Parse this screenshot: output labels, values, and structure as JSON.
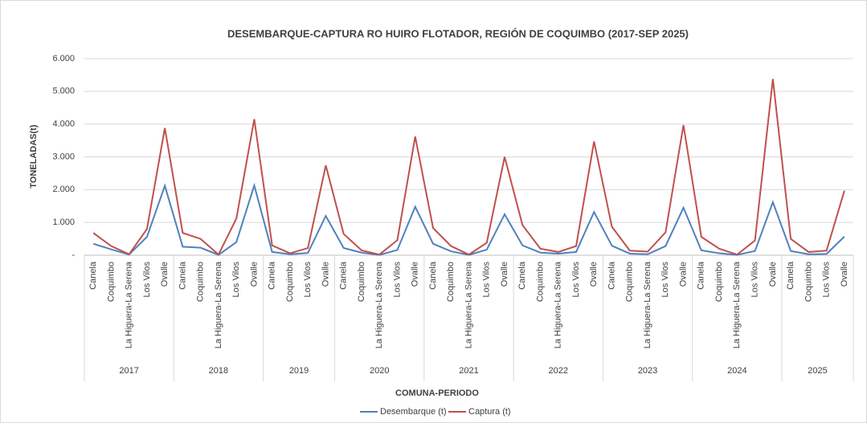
{
  "chart_data": {
    "type": "line",
    "title": "DESEMBARQUE-CAPTURA RO HUIRO FLOTADOR, REGIÓN DE COQUIMBO (2017-SEP 2025)",
    "x_label": "COMUNA-PERIODO",
    "y_label": "TONELADAS(t)",
    "category_groups": [
      {
        "label": "2017",
        "categories": [
          "Canela",
          "Coquimbo",
          "La Higuera-La Serena",
          "Los Vilos",
          "Ovalle"
        ]
      },
      {
        "label": "2018",
        "categories": [
          "Canela",
          "Coquimbo",
          "La Higuera-La Serena",
          "Los Vilos",
          "Ovalle"
        ]
      },
      {
        "label": "2019",
        "categories": [
          "Canela",
          "Coquimbo",
          "Los Vilos",
          "Ovalle"
        ]
      },
      {
        "label": "2020",
        "categories": [
          "Canela",
          "Coquimbo",
          "La Higuera-La Serena",
          "Los Vilos",
          "Ovalle"
        ]
      },
      {
        "label": "2021",
        "categories": [
          "Canela",
          "Coquimbo",
          "La Higuera-La Serena",
          "Los Vilos",
          "Ovalle"
        ]
      },
      {
        "label": "2022",
        "categories": [
          "Canela",
          "Coquimbo",
          "La Higuera-La Serena",
          "Los Vilos",
          "Ovalle"
        ]
      },
      {
        "label": "2023",
        "categories": [
          "Canela",
          "Coquimbo",
          "La Higuera-La Serena",
          "Los Vilos",
          "Ovalle"
        ]
      },
      {
        "label": "2024",
        "categories": [
          "Canela",
          "Coquimbo",
          "La Higuera-La Serena",
          "Los Vilos",
          "Ovalle"
        ]
      },
      {
        "label": "2025",
        "categories": [
          "Canela",
          "Coquimbo",
          "Los Vilos",
          "Ovalle"
        ]
      }
    ],
    "series": [
      {
        "name": "Desembarque (t)",
        "color": "#4f81bd",
        "values": [
          350,
          180,
          20,
          560,
          2120,
          260,
          230,
          10,
          400,
          2130,
          100,
          30,
          70,
          1200,
          220,
          80,
          10,
          160,
          1480,
          350,
          120,
          10,
          170,
          1250,
          300,
          80,
          50,
          100,
          1320,
          290,
          50,
          30,
          280,
          1450,
          150,
          60,
          10,
          130,
          1620,
          130,
          30,
          40,
          570
        ]
      },
      {
        "name": "Captura (t)",
        "color": "#c0504d",
        "values": [
          680,
          280,
          30,
          800,
          3880,
          680,
          500,
          20,
          1120,
          4150,
          300,
          60,
          220,
          2740,
          650,
          150,
          20,
          460,
          3620,
          830,
          280,
          20,
          380,
          3000,
          920,
          200,
          100,
          280,
          3470,
          870,
          140,
          110,
          700,
          3970,
          560,
          200,
          20,
          450,
          5380,
          500,
          100,
          140,
          1970
        ]
      }
    ],
    "ylim": [
      0,
      6000
    ],
    "yticks": [
      {
        "value": 0,
        "label": "-"
      },
      {
        "value": 1000,
        "label": "1.000"
      },
      {
        "value": 2000,
        "label": "2.000"
      },
      {
        "value": 3000,
        "label": "3.000"
      },
      {
        "value": 4000,
        "label": "4.000"
      },
      {
        "value": 5000,
        "label": "5.000"
      },
      {
        "value": 6000,
        "label": "6.000"
      }
    ],
    "grid": true,
    "legend": "bottom"
  }
}
